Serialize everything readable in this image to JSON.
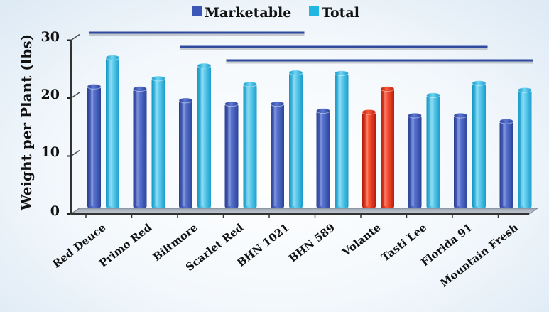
{
  "chart_data": {
    "type": "bar",
    "title": "",
    "xlabel": "",
    "ylabel": "Weight per Plant (lbs)",
    "ylim": [
      0,
      30
    ],
    "yticks": [
      0,
      10,
      20,
      30
    ],
    "grid": false,
    "legend_position": "top",
    "categories": [
      "Red Deuce",
      "Primo Red",
      "Biltmore",
      "Scarlet Red",
      "BHN 1021",
      "BHN 589",
      "Volante",
      "Tasti Lee",
      "Florida 91",
      "Mountain Fresh"
    ],
    "series": [
      {
        "name": "Marketable",
        "color": "#3b58b8",
        "values": [
          21.0,
          20.6,
          18.6,
          18.0,
          18.0,
          16.8,
          16.6,
          16.0,
          16.0,
          15.0
        ]
      },
      {
        "name": "Total",
        "color": "#22b6e0",
        "values": [
          26.0,
          22.4,
          24.6,
          21.4,
          23.4,
          23.3,
          20.6,
          19.5,
          21.6,
          20.4
        ]
      }
    ],
    "highlight": {
      "category": "Volante",
      "color": "#e02a10"
    },
    "significance_lines": [
      {
        "from": "Red Deuce",
        "to": "BHN 1021"
      },
      {
        "from": "Biltmore",
        "to": "Florida 91"
      },
      {
        "from": "Scarlet Red",
        "to": "Mountain Fresh"
      }
    ],
    "significance_line_color": "#2f4a9e"
  }
}
